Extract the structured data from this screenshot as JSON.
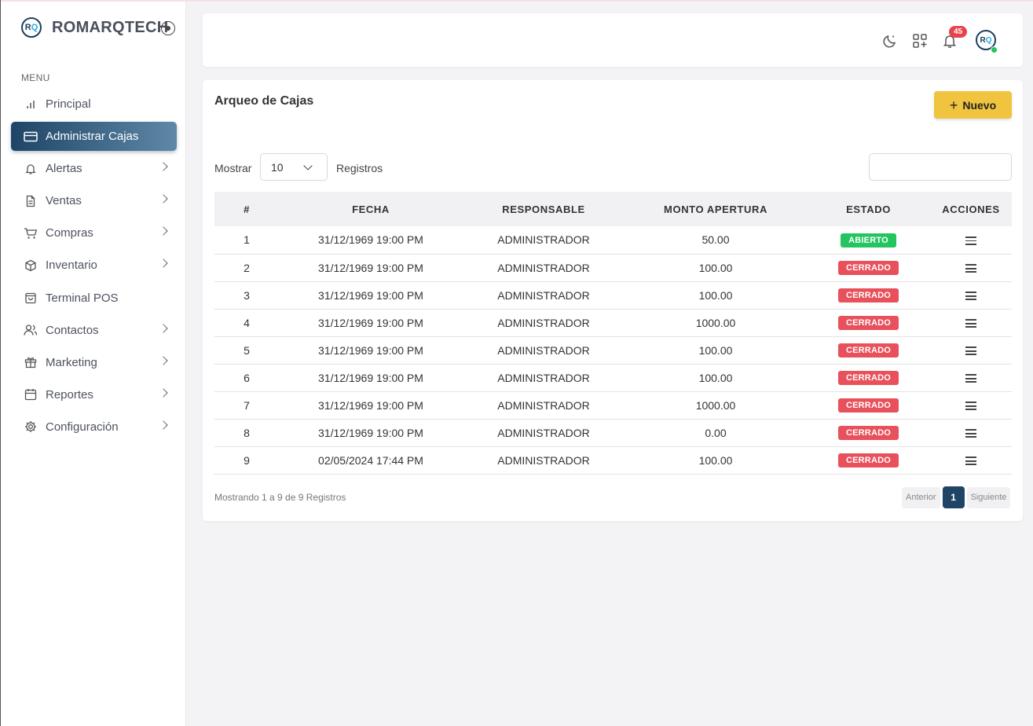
{
  "brand": {
    "logo_left": "R",
    "logo_right": "Q",
    "name": "ROMARQTECH"
  },
  "sidebar": {
    "menu_title": "MENU",
    "items": [
      {
        "label": "Principal"
      },
      {
        "label": "Administrar Cajas"
      },
      {
        "label": "Alertas"
      },
      {
        "label": "Ventas"
      },
      {
        "label": "Compras"
      },
      {
        "label": "Inventario"
      },
      {
        "label": "Terminal POS"
      },
      {
        "label": "Contactos"
      },
      {
        "label": "Marketing"
      },
      {
        "label": "Reportes"
      },
      {
        "label": "Configuración"
      }
    ]
  },
  "header": {
    "notification_count": "45",
    "avatar_left": "R",
    "avatar_right": "Q"
  },
  "main": {
    "title": "Arqueo de Cajas",
    "new_button": "Nuevo",
    "show_label": "Mostrar",
    "page_size": "10",
    "records_label": "Registros",
    "search_value": "",
    "columns": [
      "#",
      "FECHA",
      "RESPONSABLE",
      "MONTO APERTURA",
      "ESTADO",
      "ACCIONES"
    ],
    "rows": [
      [
        "1",
        "31/12/1969 19:00 PM",
        "ADMINISTRADOR",
        "50.00",
        "ABIERTO"
      ],
      [
        "2",
        "31/12/1969 19:00 PM",
        "ADMINISTRADOR",
        "100.00",
        "CERRADO"
      ],
      [
        "3",
        "31/12/1969 19:00 PM",
        "ADMINISTRADOR",
        "100.00",
        "CERRADO"
      ],
      [
        "4",
        "31/12/1969 19:00 PM",
        "ADMINISTRADOR",
        "1000.00",
        "CERRADO"
      ],
      [
        "5",
        "31/12/1969 19:00 PM",
        "ADMINISTRADOR",
        "100.00",
        "CERRADO"
      ],
      [
        "6",
        "31/12/1969 19:00 PM",
        "ADMINISTRADOR",
        "100.00",
        "CERRADO"
      ],
      [
        "7",
        "31/12/1969 19:00 PM",
        "ADMINISTRADOR",
        "1000.00",
        "CERRADO"
      ],
      [
        "8",
        "31/12/1969 19:00 PM",
        "ADMINISTRADOR",
        "0.00",
        "CERRADO"
      ],
      [
        "9",
        "02/05/2024 17:44 PM",
        "ADMINISTRADOR",
        "100.00",
        "CERRADO"
      ]
    ],
    "footer_info": "Mostrando 1 a 9 de 9 Registros",
    "pagination": {
      "prev": "Anterior",
      "current": "1",
      "next": "Siguiente"
    }
  },
  "colors": {
    "accent": "#1e4566",
    "button": "#f0c43f",
    "open": "#22c55e",
    "closed": "#e8505b",
    "badge": "#e8434d"
  }
}
